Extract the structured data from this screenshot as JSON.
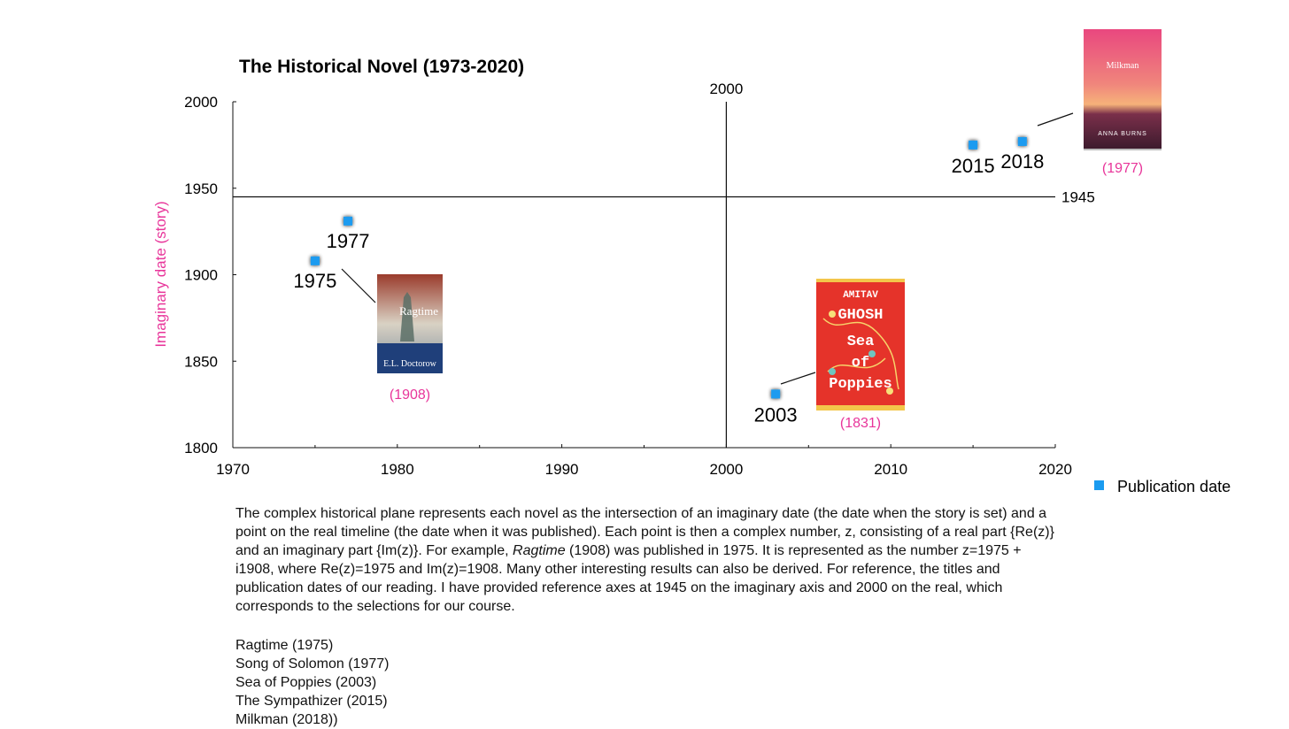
{
  "chart_data": {
    "type": "scatter",
    "title": "The Historical Novel (1973-2020)",
    "xlabel": "",
    "ylabel": "Imaginary date (story)",
    "xlim": [
      1970,
      2020
    ],
    "ylim": [
      1800,
      2000
    ],
    "x_ticks": [
      1970,
      1980,
      1990,
      2000,
      2010,
      2020
    ],
    "y_ticks": [
      1800,
      1850,
      1900,
      1950,
      2000
    ],
    "grid": false,
    "legend_position": "bottom-right",
    "series": [
      {
        "name": "Publication date",
        "color": "#1a9bf0",
        "points": [
          {
            "x": 1975,
            "y": 1908,
            "label": "1975"
          },
          {
            "x": 1977,
            "y": 1931,
            "label": "1977"
          },
          {
            "x": 2003,
            "y": 1831,
            "label": "2003"
          },
          {
            "x": 2015,
            "y": 1975,
            "label": "2015"
          },
          {
            "x": 2018,
            "y": 1977,
            "label": "2018"
          }
        ]
      }
    ],
    "reference_lines": [
      {
        "axis": "x",
        "value": 2000,
        "label": "2000"
      },
      {
        "axis": "y",
        "value": 1945,
        "label": "1945"
      }
    ],
    "annotations": [
      {
        "text": "(1908)",
        "color": "#e8359a"
      },
      {
        "text": "(1831)",
        "color": "#e8359a"
      },
      {
        "text": "(1977)",
        "color": "#e8359a"
      }
    ],
    "book_covers": [
      {
        "title": "Ragtime",
        "author": "E.L. Doctorow"
      },
      {
        "title_lines": [
          "Sea",
          "of",
          "Poppies"
        ],
        "author_lines": [
          "AMITAV",
          "GHOSH"
        ]
      },
      {
        "title": "Milkman",
        "author": "ANNA BURNS"
      }
    ]
  },
  "description": {
    "before_italic": "The complex historical plane represents each novel as the intersection of an imaginary date (the date when the story is set) and a point on the real timeline (the date when it was published). Each point is then a complex number, z, consisting of a real part {Re(z)} and an imaginary part {Im(z)}. For example, ",
    "italic": "Ragtime",
    "after_italic": " (1908) was published in 1975. It is represented as the number z=1975 + i1908, where Re(z)=1975 and Im(z)=1908. Many other interesting results can also be derived. For reference, the titles and publication dates of our reading. I have provided reference axes at 1945 on the imaginary axis and 2000 on the real, which corresponds to the selections for our course."
  },
  "reading_list": [
    "Ragtime (1975)",
    "Song of Solomon (1977)",
    "Sea of Poppies (2003)",
    "The Sympathizer (2015)",
    "Milkman (2018))"
  ]
}
